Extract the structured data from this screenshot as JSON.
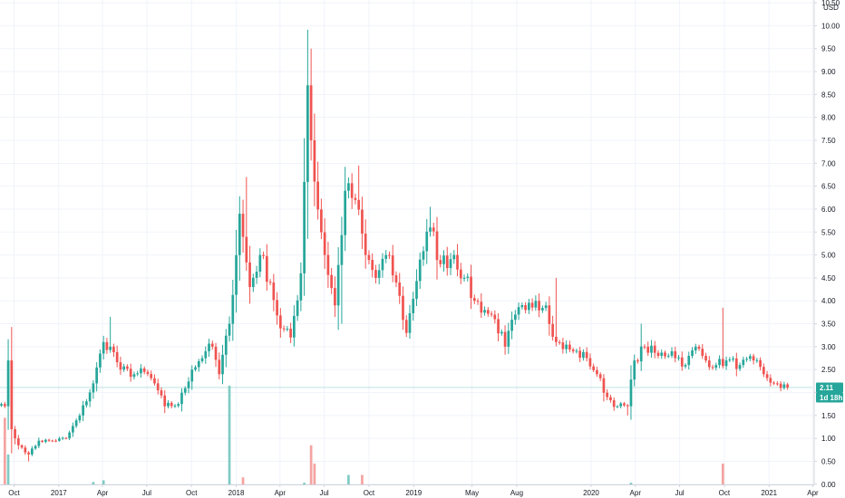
{
  "currency": "USD",
  "colors": {
    "up": "#26a69a",
    "down": "#ef5350",
    "up_volume": "#80cbc4",
    "down_volume": "#f5a3a1",
    "grid": "#f0f3fa",
    "axis_line": "#d1d4dc",
    "last_price_line": "#26a69a",
    "badge": "#26a69a"
  },
  "last_price": {
    "value_label": "2.11",
    "countdown": "1d 18h",
    "value": 2.11
  },
  "chart_data": {
    "type": "candlestick",
    "interval": "weekly",
    "ylim": [
      -0.35,
      10.8
    ],
    "y_ticks": [
      "0.00",
      "0.50",
      "1.00",
      "1.50",
      "2.00",
      "2.50",
      "3.00",
      "3.50",
      "4.00",
      "4.50",
      "5.00",
      "5.50",
      "6.00",
      "6.50",
      "7.00",
      "7.50",
      "8.00",
      "8.50",
      "9.00",
      "9.50",
      "10.00",
      "10.50"
    ],
    "x_ticks": [
      "Oct",
      "2017",
      "Apr",
      "Jul",
      "Oct",
      "2018",
      "Apr",
      "Jul",
      "Oct",
      "2019",
      "May",
      "Aug",
      "2020",
      "Apr",
      "Jul",
      "Oct",
      "2021",
      "Apr"
    ],
    "x_tick_dates": [
      "2016-10-01",
      "2017-01-01",
      "2017-04-01",
      "2017-07-01",
      "2017-10-01",
      "2018-01-01",
      "2018-04-01",
      "2018-07-01",
      "2018-10-01",
      "2019-01-01",
      "2019-05-01",
      "2019-08-01",
      "2020-01-01",
      "2020-04-01",
      "2020-07-01",
      "2020-10-01",
      "2021-01-01",
      "2021-04-01"
    ],
    "anchors": [
      [
        "2016-09-05",
        1.75
      ],
      [
        "2016-09-12",
        1.7
      ],
      [
        "2016-09-19",
        2.7
      ],
      [
        "2016-09-26",
        1.2
      ],
      [
        "2016-10-03",
        1.0
      ],
      [
        "2016-10-10",
        0.85
      ],
      [
        "2016-10-17",
        0.8
      ],
      [
        "2016-10-31",
        0.65
      ],
      [
        "2016-11-21",
        0.95
      ],
      [
        "2016-12-19",
        0.95
      ],
      [
        "2017-01-16",
        1.0
      ],
      [
        "2017-02-13",
        1.5
      ],
      [
        "2017-03-13",
        2.2
      ],
      [
        "2017-04-03",
        3.1
      ],
      [
        "2017-04-17",
        3.0
      ],
      [
        "2017-05-08",
        2.5
      ],
      [
        "2017-06-05",
        2.4
      ],
      [
        "2017-06-26",
        2.45
      ],
      [
        "2017-07-17",
        2.2
      ],
      [
        "2017-08-07",
        1.7
      ],
      [
        "2017-09-04",
        1.75
      ],
      [
        "2017-10-02",
        2.5
      ],
      [
        "2017-10-30",
        2.9
      ],
      [
        "2017-11-13",
        3.0
      ],
      [
        "2017-11-27",
        2.4
      ],
      [
        "2017-12-18",
        3.5
      ],
      [
        "2018-01-08",
        5.9
      ],
      [
        "2018-01-29",
        4.3
      ],
      [
        "2018-02-19",
        5.0
      ],
      [
        "2018-03-12",
        4.4
      ],
      [
        "2018-04-02",
        3.4
      ],
      [
        "2018-04-23",
        3.2
      ],
      [
        "2018-05-14",
        4.6
      ],
      [
        "2018-05-28",
        8.7
      ],
      [
        "2018-06-11",
        6.6
      ],
      [
        "2018-07-02",
        5.0
      ],
      [
        "2018-07-23",
        3.9
      ],
      [
        "2018-08-13",
        6.4
      ],
      [
        "2018-09-03",
        6.2
      ],
      [
        "2018-09-24",
        5.0
      ],
      [
        "2018-10-15",
        4.5
      ],
      [
        "2018-11-05",
        5.0
      ],
      [
        "2018-11-26",
        4.4
      ],
      [
        "2018-12-17",
        3.3
      ],
      [
        "2019-01-14",
        4.9
      ],
      [
        "2019-02-04",
        5.6
      ],
      [
        "2019-02-25",
        4.8
      ],
      [
        "2019-03-25",
        5.0
      ],
      [
        "2019-04-15",
        4.5
      ],
      [
        "2019-05-06",
        4.0
      ],
      [
        "2019-05-27",
        3.8
      ],
      [
        "2019-06-17",
        3.6
      ],
      [
        "2019-07-08",
        3.0
      ],
      [
        "2019-07-29",
        3.7
      ],
      [
        "2019-08-19",
        3.8
      ],
      [
        "2019-09-09",
        4.0
      ],
      [
        "2019-09-30",
        3.9
      ],
      [
        "2019-10-21",
        3.1
      ],
      [
        "2019-11-25",
        2.9
      ],
      [
        "2019-12-23",
        2.75
      ],
      [
        "2020-01-13",
        2.4
      ],
      [
        "2020-02-03",
        1.9
      ],
      [
        "2020-02-24",
        1.7
      ],
      [
        "2020-03-16",
        1.7
      ],
      [
        "2020-03-30",
        2.7
      ],
      [
        "2020-04-20",
        3.0
      ],
      [
        "2020-05-18",
        2.8
      ],
      [
        "2020-06-15",
        2.9
      ],
      [
        "2020-07-13",
        2.6
      ],
      [
        "2020-08-03",
        3.0
      ],
      [
        "2020-08-24",
        2.7
      ],
      [
        "2020-09-14",
        2.6
      ],
      [
        "2020-10-05",
        2.7
      ],
      [
        "2020-11-02",
        2.6
      ],
      [
        "2020-11-30",
        2.7
      ],
      [
        "2020-12-21",
        2.4
      ],
      [
        "2021-01-11",
        2.2
      ],
      [
        "2021-01-25",
        2.1
      ],
      [
        "2021-02-08",
        2.11
      ]
    ],
    "spikes": [
      [
        "2016-09-19",
        3.05,
        null
      ],
      [
        "2017-04-17",
        3.65,
        null
      ],
      [
        "2018-01-22",
        6.7,
        null
      ],
      [
        "2018-06-04",
        9.5,
        null
      ],
      [
        "2018-09-10",
        6.95,
        null
      ],
      [
        "2019-02-04",
        6.05,
        null
      ],
      [
        "2019-10-21",
        4.5,
        null
      ],
      [
        "2020-04-13",
        3.5,
        null
      ],
      [
        "2020-09-28",
        3.85,
        null
      ],
      [
        "2020-03-16",
        null,
        1.5
      ],
      [
        "2018-08-06",
        null,
        3.5
      ],
      [
        "2016-10-31",
        null,
        0.5
      ]
    ],
    "volume_spikes": [
      [
        "2016-09-12",
        1.8
      ],
      [
        "2016-09-19",
        1.0
      ],
      [
        "2017-12-18",
        2.5
      ],
      [
        "2018-06-04",
        1.2
      ],
      [
        "2018-06-11",
        0.8
      ],
      [
        "2020-09-28",
        0.8
      ]
    ],
    "volume_highs": [
      [
        "2017-03-13",
        0.45
      ],
      [
        "2017-04-03",
        0.5
      ],
      [
        "2018-01-15",
        0.55
      ],
      [
        "2018-05-21",
        0.45
      ],
      [
        "2018-08-20",
        0.5
      ],
      [
        "2018-09-17",
        0.5
      ],
      [
        "2019-07-01",
        0.35
      ],
      [
        "2020-04-06",
        0.25
      ]
    ]
  }
}
